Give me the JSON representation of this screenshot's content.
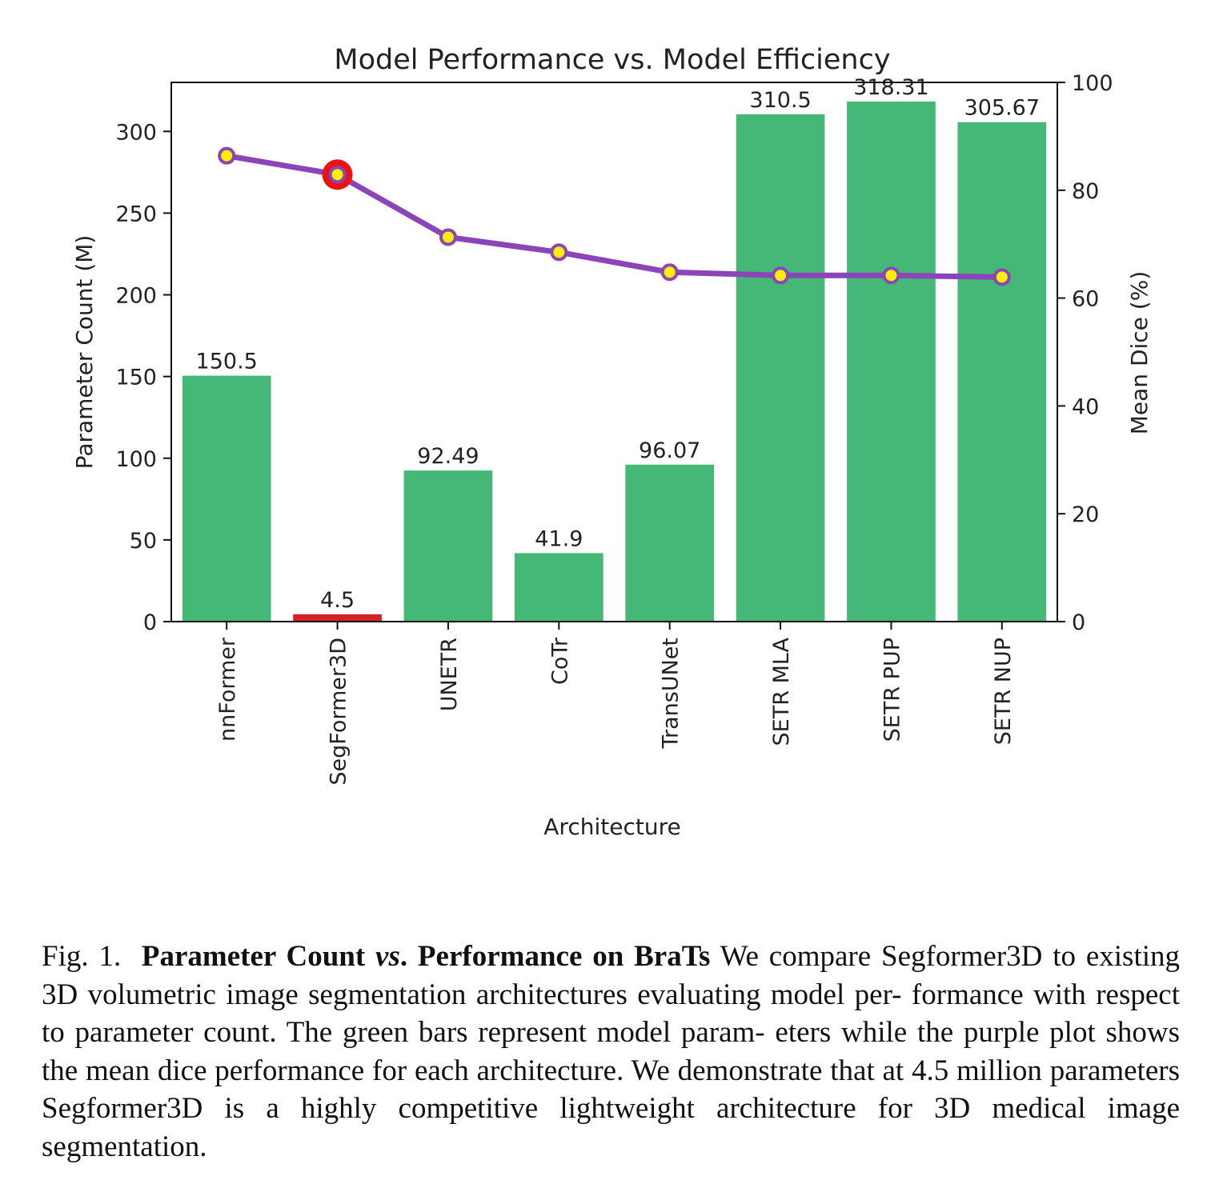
{
  "chart_data": {
    "type": "bar+line",
    "title": "Model Performance vs. Model Efficiency",
    "xlabel": "Architecture",
    "ylabel": "Parameter Count (M)",
    "y2label": "Mean Dice (%)",
    "ylim": [
      0,
      330
    ],
    "y2lim": [
      0,
      100
    ],
    "yticks": [
      0,
      50,
      100,
      150,
      200,
      250,
      300
    ],
    "y2ticks": [
      0,
      20,
      40,
      60,
      80,
      100
    ],
    "categories": [
      "nnFormer",
      "SegFormer3D",
      "UNETR",
      "CoTr",
      "TransUNet",
      "SETR MLA",
      "SETR PUP",
      "SETR NUP"
    ],
    "bar_series": {
      "name": "Parameter Count (M)",
      "values": [
        150.5,
        4.5,
        92.49,
        41.9,
        96.07,
        310.5,
        318.31,
        305.67
      ],
      "value_labels": [
        "150.5",
        "4.5",
        "92.49",
        "41.9",
        "96.07",
        "310.5",
        "318.31",
        "305.67"
      ],
      "colors": [
        "#45b878",
        "#d62224",
        "#45b878",
        "#45b878",
        "#45b878",
        "#45b878",
        "#45b878",
        "#45b878"
      ]
    },
    "line_series": {
      "name": "Mean Dice (%)",
      "values": [
        86.4,
        82.9,
        71.3,
        68.5,
        64.8,
        64.2,
        64.2,
        63.9
      ],
      "color": "#8b45b8",
      "marker_fill": "#ffee00",
      "highlight_index": 1,
      "highlight_color": "#e81414"
    }
  },
  "caption": {
    "fig_label": "Fig. 1.",
    "bold_part1": "Parameter Count",
    "italic_vs": "vs",
    "bold_part2": ". Performance on BraTs",
    "body_lines": [
      "We compare Segformer3D",
      "to existing 3D volumetric image segmentation architectures evaluating model per-",
      "formance with respect to parameter count. The green bars represent model param-",
      "eters while the purple plot shows the mean dice performance for each architecture.",
      "We demonstrate that at 4.5 million parameters Segformer3D is a highly competitive",
      "lightweight architecture for 3D medical image segmentation."
    ]
  }
}
